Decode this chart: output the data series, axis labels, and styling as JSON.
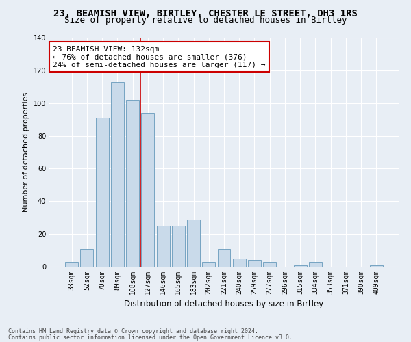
{
  "title1": "23, BEAMISH VIEW, BIRTLEY, CHESTER LE STREET, DH3 1RS",
  "title2": "Size of property relative to detached houses in Birtley",
  "xlabel": "Distribution of detached houses by size in Birtley",
  "ylabel": "Number of detached properties",
  "categories": [
    "33sqm",
    "52sqm",
    "70sqm",
    "89sqm",
    "108sqm",
    "127sqm",
    "146sqm",
    "165sqm",
    "183sqm",
    "202sqm",
    "221sqm",
    "240sqm",
    "259sqm",
    "277sqm",
    "296sqm",
    "315sqm",
    "334sqm",
    "353sqm",
    "371sqm",
    "390sqm",
    "409sqm"
  ],
  "values": [
    3,
    11,
    91,
    113,
    102,
    94,
    25,
    25,
    29,
    3,
    11,
    5,
    4,
    3,
    0,
    1,
    3,
    0,
    0,
    0,
    1
  ],
  "bar_color": "#c9daea",
  "bar_edge_color": "#6699bb",
  "vline_color": "#cc0000",
  "vline_x_index": 4.5,
  "annotation_text": "23 BEAMISH VIEW: 132sqm\n← 76% of detached houses are smaller (376)\n24% of semi-detached houses are larger (117) →",
  "annotation_box_color": "white",
  "annotation_box_edge": "#cc0000",
  "footer1": "Contains HM Land Registry data © Crown copyright and database right 2024.",
  "footer2": "Contains public sector information licensed under the Open Government Licence v3.0.",
  "bg_color": "#e8eef5",
  "plot_bg_color": "#e8eef5",
  "ylim": [
    0,
    140
  ],
  "title1_fontsize": 10,
  "title2_fontsize": 9,
  "tick_fontsize": 7,
  "ylabel_fontsize": 8,
  "xlabel_fontsize": 8.5,
  "annotation_fontsize": 8,
  "footer_fontsize": 6
}
